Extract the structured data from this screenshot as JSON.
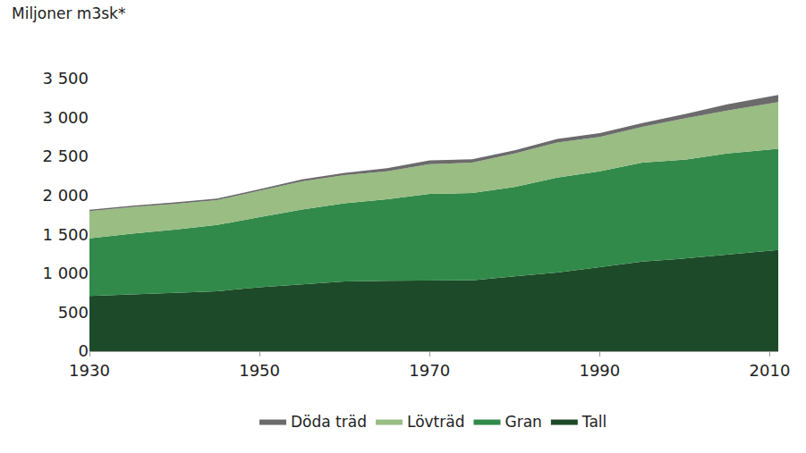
{
  "chart_data": {
    "type": "area",
    "stacked": true,
    "ylabel": "Miljoner m3sk*",
    "x": [
      1930,
      1935,
      1940,
      1945,
      1950,
      1955,
      1960,
      1965,
      1970,
      1975,
      1980,
      1985,
      1990,
      1995,
      2000,
      2005,
      2011
    ],
    "series": [
      {
        "name": "Tall",
        "color": "#1d4a29",
        "values": [
          710,
          730,
          750,
          770,
          820,
          860,
          895,
          905,
          910,
          910,
          960,
          1010,
          1080,
          1150,
          1190,
          1240,
          1300
        ]
      },
      {
        "name": "Gran",
        "color": "#318a49",
        "values": [
          740,
          780,
          810,
          850,
          900,
          960,
          1005,
          1045,
          1110,
          1120,
          1150,
          1220,
          1230,
          1270,
          1270,
          1300,
          1300
        ]
      },
      {
        "name": "Lövträd",
        "color": "#99bd83",
        "values": [
          350,
          340,
          330,
          320,
          340,
          360,
          360,
          360,
          380,
          390,
          430,
          450,
          440,
          460,
          530,
          550,
          600
        ]
      },
      {
        "name": "Döda träd",
        "color": "#6b6b6b",
        "values": [
          15,
          18,
          20,
          20,
          20,
          25,
          30,
          40,
          50,
          45,
          40,
          45,
          50,
          50,
          55,
          80,
          90
        ]
      }
    ],
    "xlim": [
      1930,
      2011
    ],
    "xticks": [
      1930,
      1950,
      1970,
      1990,
      2010
    ],
    "ylim": [
      0,
      3500
    ],
    "yticks": [
      0,
      500,
      {
        "value": 1000,
        "label": "1 000"
      },
      {
        "value": 1500,
        "label": "1 500"
      },
      {
        "value": 2000,
        "label": "2 000"
      },
      {
        "value": 2500,
        "label": "2 500"
      },
      {
        "value": 3000,
        "label": "3 000"
      },
      {
        "value": 3500,
        "label": "3 500"
      }
    ],
    "grid": false,
    "legend": "bottom"
  }
}
